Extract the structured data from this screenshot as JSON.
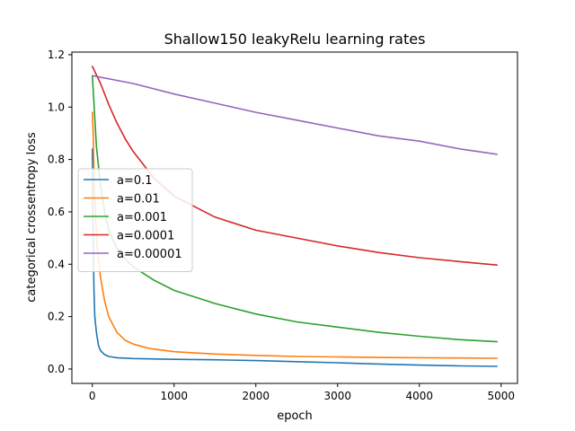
{
  "chart_data": {
    "type": "line",
    "title": "Shallow150 leakyRelu learning rates",
    "xlabel": "epoch",
    "ylabel": "categorical crossentropy loss",
    "xlim": [
      -250,
      5200
    ],
    "ylim": [
      -0.055,
      1.21
    ],
    "xticks": [
      0,
      1000,
      2000,
      3000,
      4000,
      5000
    ],
    "yticks": [
      0.0,
      0.2,
      0.4,
      0.6,
      0.8,
      1.0,
      1.2
    ],
    "xtick_labels": [
      "0",
      "1000",
      "2000",
      "3000",
      "4000",
      "5000"
    ],
    "ytick_labels": [
      "0.0",
      "0.2",
      "0.4",
      "0.6",
      "0.8",
      "1.0",
      "1.2"
    ],
    "grid": false,
    "legend_position": "center-left",
    "series": [
      {
        "name": "a=0.1",
        "color": "#1f77b4",
        "x": [
          0,
          10,
          20,
          30,
          50,
          75,
          100,
          150,
          200,
          300,
          500,
          1000,
          1500,
          2000,
          2500,
          3000,
          3500,
          4000,
          4500,
          4950
        ],
        "y": [
          0.84,
          0.5,
          0.3,
          0.2,
          0.14,
          0.09,
          0.07,
          0.055,
          0.048,
          0.043,
          0.04,
          0.037,
          0.035,
          0.032,
          0.028,
          0.024,
          0.019,
          0.015,
          0.012,
          0.01
        ]
      },
      {
        "name": "a=0.01",
        "color": "#ff7f0e",
        "x": [
          0,
          10,
          20,
          40,
          60,
          100,
          150,
          200,
          300,
          400,
          500,
          700,
          1000,
          1500,
          2000,
          2500,
          3000,
          3500,
          4000,
          4500,
          4950
        ],
        "y": [
          0.98,
          0.9,
          0.75,
          0.58,
          0.46,
          0.35,
          0.26,
          0.2,
          0.14,
          0.11,
          0.095,
          0.078,
          0.066,
          0.057,
          0.052,
          0.048,
          0.046,
          0.044,
          0.043,
          0.042,
          0.041
        ]
      },
      {
        "name": "a=0.001",
        "color": "#2ca02c",
        "x": [
          0,
          25,
          50,
          100,
          150,
          200,
          300,
          400,
          500,
          750,
          1000,
          1500,
          2000,
          2500,
          3000,
          3500,
          4000,
          4500,
          4950
        ],
        "y": [
          1.12,
          0.99,
          0.85,
          0.7,
          0.6,
          0.53,
          0.46,
          0.42,
          0.39,
          0.34,
          0.3,
          0.25,
          0.21,
          0.18,
          0.16,
          0.14,
          0.125,
          0.112,
          0.104
        ]
      },
      {
        "name": "a=0.0001",
        "color": "#d62728",
        "x": [
          0,
          100,
          200,
          300,
          400,
          500,
          750,
          1000,
          1500,
          2000,
          2500,
          3000,
          3500,
          4000,
          4500,
          4950
        ],
        "y": [
          1.155,
          1.09,
          1.01,
          0.94,
          0.88,
          0.83,
          0.73,
          0.66,
          0.58,
          0.53,
          0.5,
          0.47,
          0.445,
          0.425,
          0.41,
          0.397
        ]
      },
      {
        "name": "a=0.00001",
        "color": "#9467bd",
        "x": [
          0,
          500,
          1000,
          1500,
          2000,
          2500,
          3000,
          3500,
          4000,
          4500,
          4950
        ],
        "y": [
          1.12,
          1.09,
          1.05,
          1.015,
          0.98,
          0.95,
          0.92,
          0.89,
          0.87,
          0.84,
          0.82
        ]
      }
    ]
  }
}
